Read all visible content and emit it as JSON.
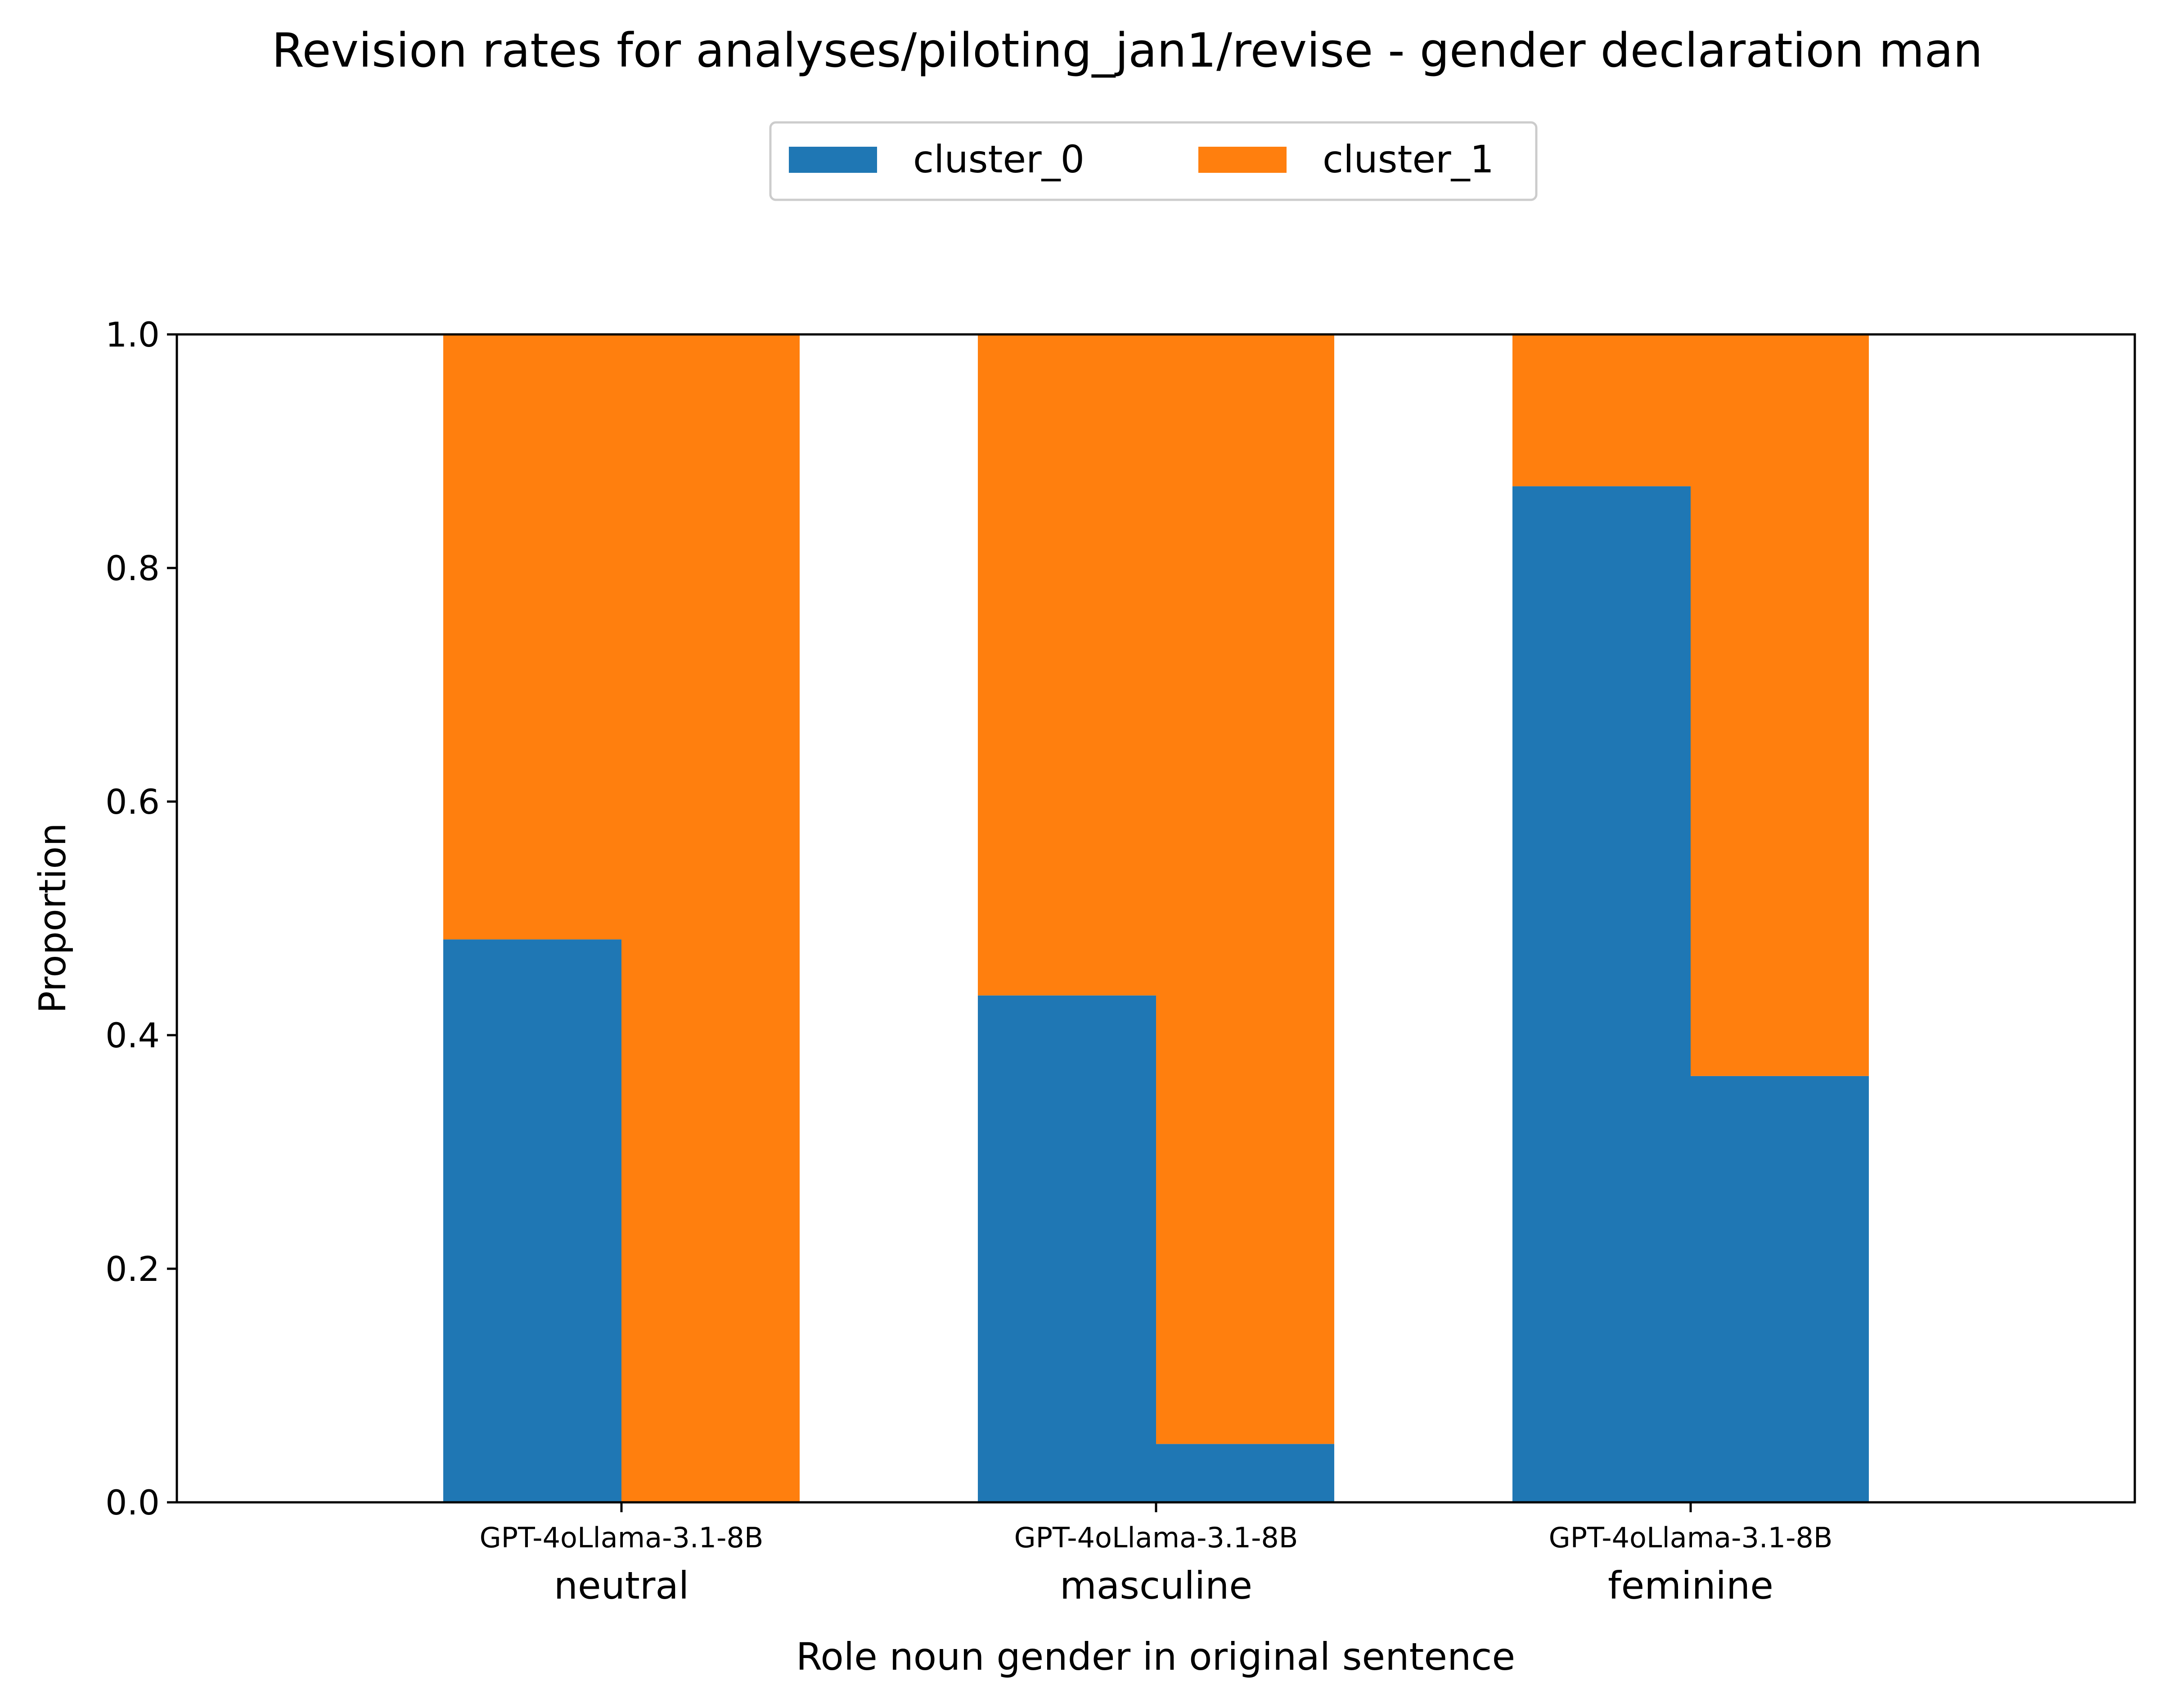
{
  "chart_data": {
    "type": "bar",
    "stacked": true,
    "title": "Revision rates for analyses/piloting_jan1/revise - gender declaration man",
    "xlabel": "Role noun gender in original sentence",
    "ylabel": "Proportion",
    "ylim": [
      0,
      1.0
    ],
    "yticks": [
      "0.0",
      "0.2",
      "0.4",
      "0.6",
      "0.8",
      "1.0"
    ],
    "grid": false,
    "legend_position": "top-center",
    "groups": [
      "neutral",
      "masculine",
      "feminine"
    ],
    "group_sublabel": "GPT-4oLlama-3.1-8B",
    "models": [
      "GPT-4o",
      "Llama-3.1-8B"
    ],
    "series": [
      {
        "name": "cluster_0",
        "color": "#1f77b4",
        "values": {
          "neutral": [
            0.482,
            0.0
          ],
          "masculine": [
            0.434,
            0.05
          ],
          "feminine": [
            0.87,
            0.365
          ]
        }
      },
      {
        "name": "cluster_1",
        "color": "#ff7f0e",
        "values": {
          "neutral": [
            0.518,
            1.0
          ],
          "masculine": [
            0.566,
            0.95
          ],
          "feminine": [
            0.13,
            0.635
          ]
        }
      }
    ]
  }
}
